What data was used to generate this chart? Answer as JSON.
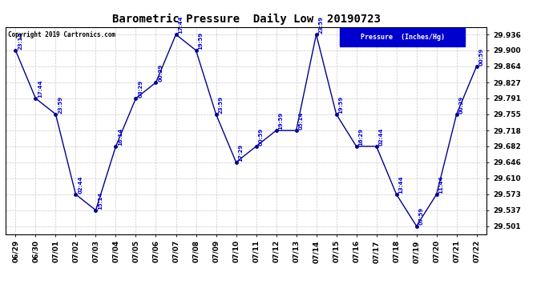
{
  "title": "Barometric Pressure  Daily Low  20190723",
  "copyright": "Copyright 2019 Cartronics.com",
  "legend_label": "Pressure  (Inches/Hg)",
  "x_labels": [
    "06/29",
    "06/30",
    "07/01",
    "07/02",
    "07/03",
    "07/04",
    "07/05",
    "07/06",
    "07/07",
    "07/08",
    "07/09",
    "07/10",
    "07/11",
    "07/12",
    "07/13",
    "07/14",
    "07/15",
    "07/16",
    "07/17",
    "07/18",
    "07/19",
    "07/20",
    "07/21",
    "07/22"
  ],
  "data_points": [
    {
      "date": "06/29",
      "time": "23:14",
      "value": 29.9
    },
    {
      "date": "06/30",
      "time": "17:44",
      "value": 29.791
    },
    {
      "date": "07/01",
      "time": "23:59",
      "value": 29.755
    },
    {
      "date": "07/02",
      "time": "02:44",
      "value": 29.573
    },
    {
      "date": "07/03",
      "time": "15:14",
      "value": 29.537
    },
    {
      "date": "07/04",
      "time": "16:14",
      "value": 29.682
    },
    {
      "date": "07/05",
      "time": "03:29",
      "value": 29.791
    },
    {
      "date": "07/06",
      "time": "00:29",
      "value": 29.827
    },
    {
      "date": "07/07",
      "time": "17:44",
      "value": 29.936
    },
    {
      "date": "07/08",
      "time": "19:59",
      "value": 29.9
    },
    {
      "date": "07/09",
      "time": "23:59",
      "value": 29.755
    },
    {
      "date": "07/10",
      "time": "17:29",
      "value": 29.646
    },
    {
      "date": "07/11",
      "time": "00:59",
      "value": 29.682
    },
    {
      "date": "07/12",
      "time": "19:59",
      "value": 29.718
    },
    {
      "date": "07/13",
      "time": "05:14",
      "value": 29.718
    },
    {
      "date": "07/14",
      "time": "23:59",
      "value": 29.936
    },
    {
      "date": "07/15",
      "time": "19:59",
      "value": 29.755
    },
    {
      "date": "07/16",
      "time": "16:29",
      "value": 29.682
    },
    {
      "date": "07/17",
      "time": "02:44",
      "value": 29.682
    },
    {
      "date": "07/18",
      "time": "13:44",
      "value": 29.573
    },
    {
      "date": "07/19",
      "time": "07:59",
      "value": 29.501
    },
    {
      "date": "07/20",
      "time": "11:44",
      "value": 29.573
    },
    {
      "date": "07/21",
      "time": "00:29",
      "value": 29.755
    },
    {
      "date": "07/22",
      "time": "00:59",
      "value": 29.864
    }
  ],
  "y_ticks": [
    29.501,
    29.537,
    29.573,
    29.61,
    29.646,
    29.682,
    29.718,
    29.755,
    29.791,
    29.827,
    29.864,
    29.9,
    29.936
  ],
  "ylim_min": 29.483,
  "ylim_max": 29.953,
  "line_color": "#00008B",
  "marker_color": "#00008B",
  "label_color": "#0000CD",
  "grid_color": "#C8C8C8",
  "bg_color": "#FFFFFF",
  "title_color": "#000000",
  "copyright_color": "#000000",
  "legend_bg": "#0000CD",
  "legend_text_color": "#FFFFFF"
}
